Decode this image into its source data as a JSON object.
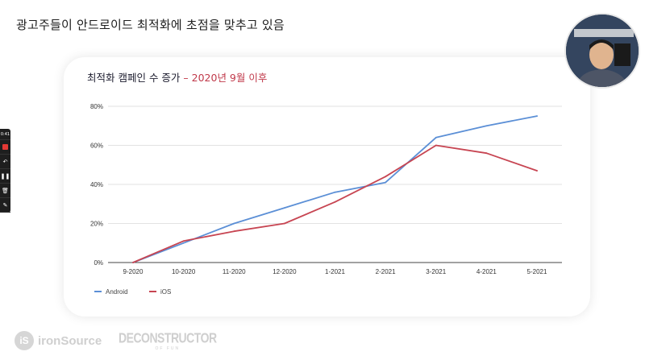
{
  "slide": {
    "title": "광고주들이 안드로이드 최적화에 초점을 맞추고 있음"
  },
  "toolbar": {
    "timer": "0:41"
  },
  "branding": {
    "ironsource_mark": "iS",
    "ironsource": "ironSource",
    "deconstructor": "DECONSTRUCTOR",
    "deconstructor_sub": "OF FUN"
  },
  "chart_data": {
    "type": "line",
    "title": "최적화 캠페인 수 증가",
    "title_highlight": "– 2020년 9월 이후",
    "categories": [
      "9-2020",
      "10-2020",
      "11-2020",
      "12-2020",
      "1-2021",
      "2-2021",
      "3-2021",
      "4-2021",
      "5-2021"
    ],
    "y_ticks": [
      "0%",
      "20%",
      "40%",
      "60%",
      "80%"
    ],
    "ylim": [
      0,
      80
    ],
    "series": [
      {
        "name": "Android",
        "color": "#5b8fd6",
        "values": [
          0,
          10,
          20,
          28,
          36,
          41,
          64,
          70,
          75
        ]
      },
      {
        "name": "iOS",
        "color": "#c74552",
        "values": [
          0,
          11,
          16,
          20,
          31,
          44,
          60,
          56,
          47
        ]
      }
    ],
    "legend_position": "bottom-left",
    "grid": true
  }
}
